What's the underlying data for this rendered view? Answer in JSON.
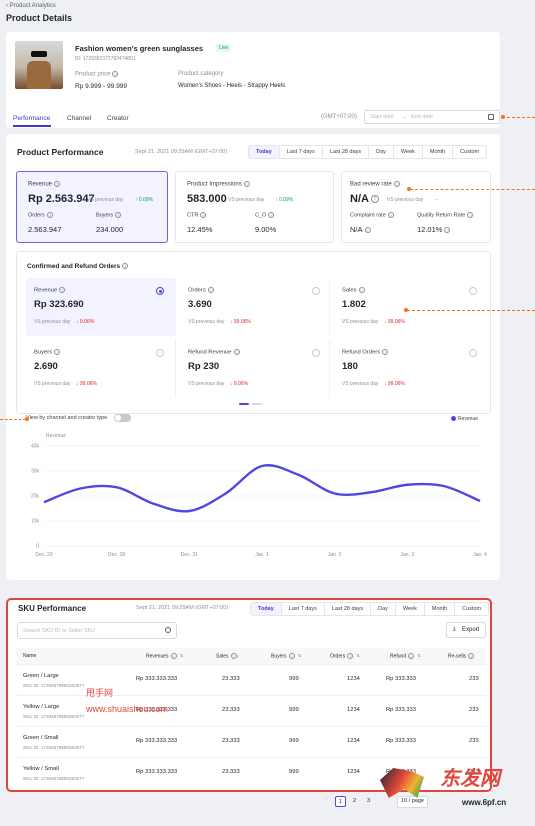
{
  "breadcrumb": "Product Analytics",
  "page_title": "Product Details",
  "product": {
    "name": "Fashion women's green sunglasses",
    "status": "Live",
    "id": "ID: 1729382372782474801",
    "price_label": "Product price",
    "price_value": "Rp 9.999 - 99.999",
    "category_label": "Product category",
    "category_value": "Women's Shoes - Heels - Strappy Heels"
  },
  "nav_tabs": [
    "Performance",
    "Channel",
    "Creator"
  ],
  "timezone": "(GMT+07:00)",
  "date_start_placeholder": "Start date",
  "date_sep": "→",
  "date_end_placeholder": "End date",
  "performance": {
    "title": "Product Performance",
    "timestamp": "Sept 21, 2021 09:29AM (GMT+07:00)",
    "ranges": [
      "Today",
      "Last 7 days",
      "Last 28 days",
      "Day",
      "Week",
      "Month",
      "Custom"
    ],
    "cards": [
      {
        "label": "Revenue",
        "value": "Rp 2.563.947",
        "vs": "VS previous day",
        "delta": "↑ 0.09%",
        "sub": [
          {
            "label": "Orders",
            "value": "2.563.947"
          },
          {
            "label": "Buyers",
            "value": "234.000"
          }
        ]
      },
      {
        "label": "Product Impressions",
        "value": "583.000",
        "vs": "VS previous day",
        "delta": "↑ 0.09%",
        "sub": [
          {
            "label": "CTR",
            "value": "12.45%"
          },
          {
            "label": "C_O",
            "value": "9.00%"
          }
        ]
      },
      {
        "label": "Bad review rate",
        "value": "N/A",
        "vs": "VS previous day",
        "delta": "--",
        "sub": [
          {
            "label": "Complaint rate",
            "value": "N/A"
          },
          {
            "label": "Quality Return Rate",
            "value": "12.01%"
          }
        ]
      }
    ]
  },
  "refund": {
    "title": "Confirmed and Refund Orders",
    "items": [
      {
        "label": "Revenue",
        "value": "Rp 323.690",
        "vs": "VS previous day",
        "delta": "↓ 9.06%"
      },
      {
        "label": "Orders",
        "value": "3.690",
        "vs": "VS previous day",
        "delta": "↓ 99.06%"
      },
      {
        "label": "Sales",
        "value": "1.802",
        "vs": "VS previous day",
        "delta": "↓ 99.06%"
      },
      {
        "label": "Buyers",
        "value": "2.690",
        "vs": "VS previous day",
        "delta": "↓ 99.06%"
      },
      {
        "label": "Refund Revenue",
        "value": "Rp 230",
        "vs": "VS previous day",
        "delta": "↓ 9.06%"
      },
      {
        "label": "Refund Orders",
        "value": "180",
        "vs": "VS previous day",
        "delta": "↓ 99.06%"
      }
    ]
  },
  "toggle_label": "View by channel and creator type",
  "chart_data": {
    "type": "line",
    "ylabel": "Revenue",
    "legend": "Revenue",
    "categories": [
      "Dec. 29",
      "Dec. 30",
      "Dec. 31",
      "Jan. 1",
      "Jan. 2",
      "Jan. 3",
      "Jan. 4"
    ],
    "y_ticks": [
      "0",
      "10k",
      "20k",
      "30k",
      "40k"
    ],
    "ylim": [
      0,
      40000
    ],
    "x": [
      0,
      0.5,
      1,
      1.5,
      2,
      2.5,
      3,
      3.5,
      4,
      4.5,
      5,
      5.5,
      6
    ],
    "values": [
      17500,
      23000,
      23500,
      17000,
      14000,
      21000,
      32000,
      28500,
      21000,
      21500,
      24500,
      24000,
      18000
    ],
    "line_color": "#4f46e5"
  },
  "sku": {
    "title": "SKU Performance",
    "timestamp": "Sept 21, 2021 09:29AM (GMT+07:00)",
    "ranges": [
      "Today",
      "Last 7 days",
      "Last 28 days",
      "Day",
      "Week",
      "Month",
      "Custom"
    ],
    "search_placeholder": "Search SKU ID or Seller SKU",
    "export_label": "Export",
    "columns": [
      "Name",
      "Revenues",
      "Sales",
      "Buyers",
      "Orders",
      "Refund",
      "Re-sells"
    ],
    "rows": [
      {
        "name": "Green / Large",
        "sku_id": "SKU ID: 1728467898028397?",
        "revenue": "Rp 333.333.333",
        "sales": "23.333",
        "buyers": "999",
        "orders": "1234",
        "refund": "Rp 333.333",
        "resells": "233"
      },
      {
        "name": "Yellow / Large",
        "sku_id": "SKU ID: 1728467898028397?",
        "revenue": "Rp 333.333.333",
        "sales": "23.333",
        "buyers": "999",
        "orders": "1234",
        "refund": "Rp 333.333",
        "resells": "233"
      },
      {
        "name": "Green / Small",
        "sku_id": "SKU ID: 1728467898028397?",
        "revenue": "Rp 333.333.333",
        "sales": "23.333",
        "buyers": "999",
        "orders": "1234",
        "refund": "Rp 333.333",
        "resells": "233"
      },
      {
        "name": "Yellow / Small",
        "sku_id": "SKU ID: 1728467898028397?",
        "revenue": "Rp 333.333.333",
        "sales": "23.333",
        "buyers": "999",
        "orders": "1234",
        "refund": "Rp 333.333",
        "resells": "233"
      }
    ],
    "pages": [
      "1",
      "2",
      "3"
    ],
    "page_size": "10 / page"
  },
  "watermarks": {
    "w1": "甩手网",
    "w2": "www.shuaishou.com",
    "w3": "东发网",
    "w4": "www.6pf.cn"
  }
}
